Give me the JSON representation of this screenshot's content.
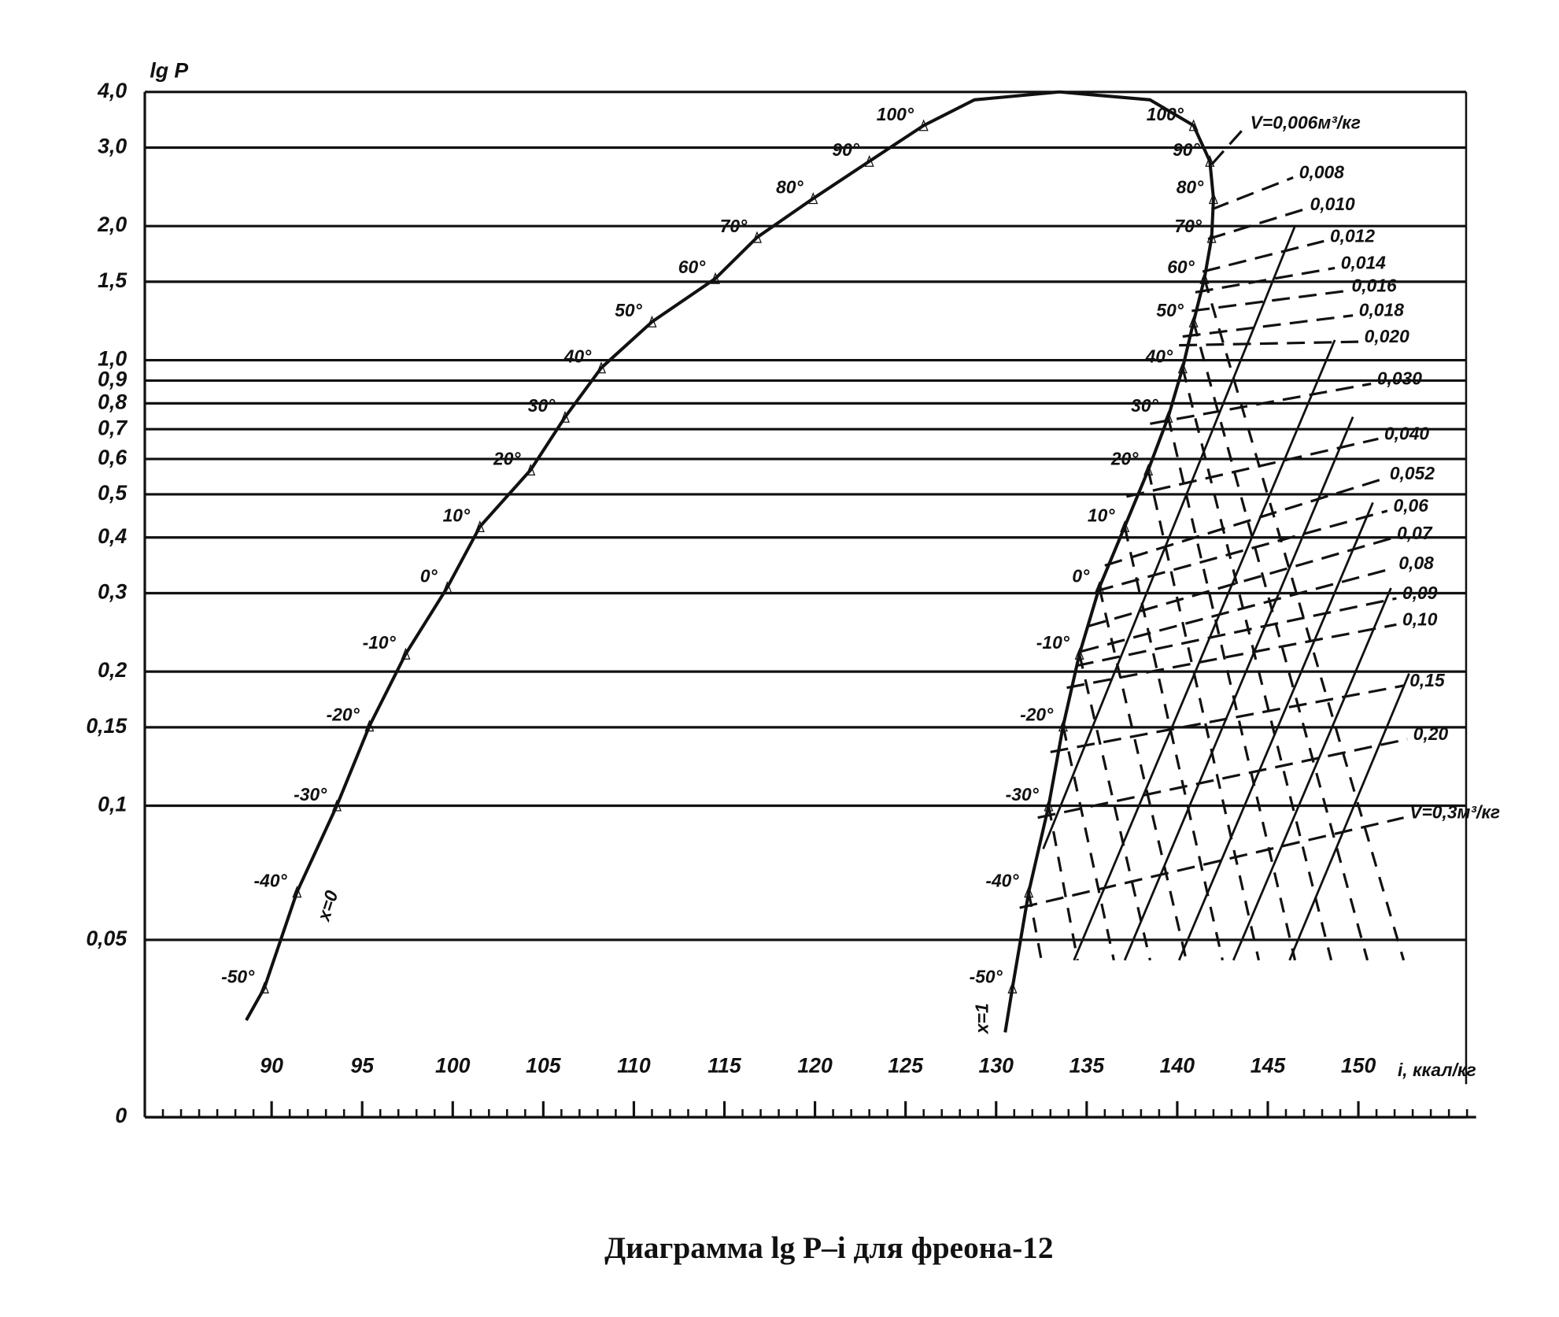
{
  "chart_data": {
    "type": "line",
    "title": "Диаграмма lg P–i для фреона-12",
    "y_label": "lg P",
    "x_label": "i, ккал/кг",
    "y_scale": "log",
    "grid": true,
    "color": "#111111",
    "xlim": [
      83,
      156.5
    ],
    "xticks": [
      90,
      95,
      100,
      105,
      110,
      115,
      120,
      125,
      130,
      135,
      140,
      145,
      150
    ],
    "xminorticks": [
      84,
      85,
      86,
      87,
      88,
      89,
      91,
      92,
      93,
      94,
      96,
      97,
      98,
      99,
      101,
      102,
      103,
      104,
      106,
      107,
      108,
      109,
      111,
      112,
      113,
      114,
      116,
      117,
      118,
      119,
      121,
      122,
      123,
      124,
      126,
      127,
      128,
      129,
      131,
      132,
      133,
      134,
      136,
      137,
      138,
      139,
      141,
      142,
      143,
      144,
      146,
      147,
      148,
      149,
      151,
      152,
      153,
      154,
      155,
      156
    ],
    "ylim": [
      0.02,
      4
    ],
    "yticks": [
      {
        "value": 4,
        "label": "4,0"
      },
      {
        "value": 3,
        "label": "3,0"
      },
      {
        "value": 2,
        "label": "2,0"
      },
      {
        "value": 1.5,
        "label": "1,5"
      },
      {
        "value": 1,
        "label": "1,0"
      },
      {
        "value": 0.9,
        "label": "0,9"
      },
      {
        "value": 0.8,
        "label": "0,8"
      },
      {
        "value": 0.7,
        "label": "0,7"
      },
      {
        "value": 0.6,
        "label": "0,6"
      },
      {
        "value": 0.5,
        "label": "0,5"
      },
      {
        "value": 0.4,
        "label": "0,4"
      },
      {
        "value": 0.3,
        "label": "0,3"
      },
      {
        "value": 0.2,
        "label": "0,2"
      },
      {
        "value": 0.15,
        "label": "0,15"
      },
      {
        "value": 0.1,
        "label": "0,1"
      },
      {
        "value": 0.05,
        "label": "0,05"
      },
      {
        "value": 0.02,
        "label": "0"
      }
    ],
    "series": [
      {
        "name": "x=0",
        "x": [
          88.6,
          89.6,
          91.4,
          93.6,
          95.4,
          97.4,
          99.7,
          101.5,
          104.3,
          106.2,
          108.2,
          111.0,
          114.5,
          116.8,
          119.9,
          123.0,
          126.0,
          128.8,
          133.5
        ],
        "values": [
          0.033,
          0.039,
          0.064,
          0.1,
          0.151,
          0.219,
          0.309,
          0.423,
          0.567,
          0.745,
          0.961,
          1.219,
          1.525,
          1.886,
          2.306,
          2.795,
          3.363,
          3.84,
          4.0
        ],
        "point_labels": [
          null,
          "-50°",
          "-40°",
          "-30°",
          "-20°",
          "-10°",
          "0°",
          "10°",
          "20°",
          "30°",
          "40°",
          "50°",
          "60°",
          "70°",
          "80°",
          "90°",
          "100°",
          null,
          null
        ]
      },
      {
        "name": "x=1",
        "x": [
          133.5,
          138.5,
          140.9,
          141.8,
          142.0,
          141.9,
          141.5,
          140.9,
          140.3,
          139.5,
          138.4,
          137.1,
          135.7,
          134.6,
          133.7,
          132.9,
          131.8,
          130.9,
          130.5
        ],
        "values": [
          4.0,
          3.84,
          3.363,
          2.795,
          2.306,
          1.886,
          1.525,
          1.219,
          0.961,
          0.745,
          0.567,
          0.423,
          0.309,
          0.219,
          0.151,
          0.1,
          0.064,
          0.039,
          0.031
        ],
        "point_labels": [
          null,
          null,
          "100°",
          "90°",
          "80°",
          "70°",
          "60°",
          "50°",
          "40°",
          "30°",
          "20°",
          "10°",
          "0°",
          "-10°",
          "-20°",
          "-30°",
          "-40°",
          "-50°",
          null
        ]
      }
    ],
    "isentropes": [
      {
        "x": [
          132.6,
          146.5
        ],
        "y": [
          0.08,
          2.0
        ]
      },
      {
        "x": [
          134.3,
          148.7
        ],
        "y": [
          0.045,
          1.11
        ]
      },
      {
        "x": [
          137.1,
          149.7
        ],
        "y": [
          0.045,
          0.746
        ]
      },
      {
        "x": [
          140.1,
          150.8
        ],
        "y": [
          0.045,
          0.479
        ]
      },
      {
        "x": [
          143.1,
          151.8
        ],
        "y": [
          0.045,
          0.308
        ]
      },
      {
        "x": [
          146.2,
          152.8
        ],
        "y": [
          0.045,
          0.198
        ]
      }
    ],
    "isotherms": [
      {
        "x": [
          131.8,
          132.5
        ],
        "y": [
          0.064,
          0.045
        ]
      },
      {
        "x": [
          132.9,
          134.5
        ],
        "y": [
          0.1,
          0.045
        ]
      },
      {
        "x": [
          133.7,
          136.5
        ],
        "y": [
          0.151,
          0.045
        ]
      },
      {
        "x": [
          134.6,
          138.5
        ],
        "y": [
          0.219,
          0.045
        ]
      },
      {
        "x": [
          135.7,
          140.5
        ],
        "y": [
          0.309,
          0.045
        ]
      },
      {
        "x": [
          137.1,
          142.5
        ],
        "y": [
          0.423,
          0.045
        ]
      },
      {
        "x": [
          138.4,
          144.5
        ],
        "y": [
          0.567,
          0.045
        ]
      },
      {
        "x": [
          139.5,
          146.5
        ],
        "y": [
          0.745,
          0.045
        ]
      },
      {
        "x": [
          140.3,
          148.5
        ],
        "y": [
          0.961,
          0.045
        ]
      },
      {
        "x": [
          140.9,
          150.5
        ],
        "y": [
          1.219,
          0.045
        ]
      },
      {
        "x": [
          141.5,
          152.5
        ],
        "y": [
          1.525,
          0.045
        ]
      }
    ],
    "isochores": [
      {
        "label": "V=0,006м³/кг",
        "x": [
          141.9,
          143.7
        ],
        "y": [
          2.75,
          3.32
        ]
      },
      {
        "label": "0,008",
        "x": [
          141.9,
          146.4
        ],
        "y": [
          2.18,
          2.57
        ]
      },
      {
        "label": "0,010",
        "x": [
          141.7,
          147.0
        ],
        "y": [
          1.87,
          2.18
        ]
      },
      {
        "label": "0,012",
        "x": [
          141.4,
          148.1
        ],
        "y": [
          1.58,
          1.85
        ]
      },
      {
        "label": "0,014",
        "x": [
          141.0,
          148.7
        ],
        "y": [
          1.42,
          1.61
        ]
      },
      {
        "label": "0,016",
        "x": [
          140.8,
          149.3
        ],
        "y": [
          1.29,
          1.43
        ]
      },
      {
        "label": "0,018",
        "x": [
          140.3,
          149.7
        ],
        "y": [
          1.13,
          1.26
        ]
      },
      {
        "label": "0,020",
        "x": [
          140.1,
          150.0
        ],
        "y": [
          1.08,
          1.1
        ]
      },
      {
        "label": "0,030",
        "x": [
          138.5,
          150.7
        ],
        "y": [
          0.72,
          0.885
        ]
      },
      {
        "label": "0,040",
        "x": [
          137.2,
          151.1
        ],
        "y": [
          0.494,
          0.666
        ]
      },
      {
        "label": "0,052",
        "x": [
          136.0,
          151.4
        ],
        "y": [
          0.346,
          0.542
        ]
      },
      {
        "label": "0,06",
        "x": [
          135.5,
          151.6
        ],
        "y": [
          0.303,
          0.459
        ]
      },
      {
        "label": "0,07",
        "x": [
          135.1,
          151.8
        ],
        "y": [
          0.253,
          0.398
        ]
      },
      {
        "label": "0,08",
        "x": [
          134.7,
          151.9
        ],
        "y": [
          0.222,
          0.341
        ]
      },
      {
        "label": "0,09",
        "x": [
          134.4,
          152.1
        ],
        "y": [
          0.206,
          0.292
        ]
      },
      {
        "label": "0,10",
        "x": [
          133.9,
          152.1
        ],
        "y": [
          0.184,
          0.255
        ]
      },
      {
        "label": "0,15",
        "x": [
          133.0,
          152.5
        ],
        "y": [
          0.132,
          0.186
        ]
      },
      {
        "label": "0,20",
        "x": [
          132.3,
          152.7
        ],
        "y": [
          0.094,
          0.141
        ]
      },
      {
        "label": "V=0,3м³/кг",
        "x": [
          131.3,
          152.5
        ],
        "y": [
          0.059,
          0.094
        ]
      }
    ]
  }
}
